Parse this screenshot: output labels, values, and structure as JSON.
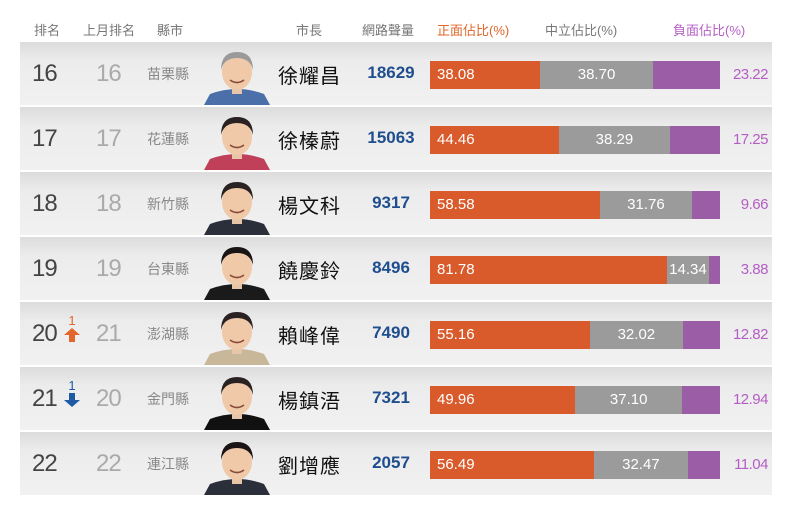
{
  "header": {
    "rank": "排名",
    "prev_rank": "上月排名",
    "county": "縣市",
    "mayor": "市長",
    "volume": "網路聲量",
    "positive": "正面佔比(%)",
    "neutral": "中立佔比(%)",
    "negative": "負面佔比(%)"
  },
  "colors": {
    "positive": "#d95b2b",
    "neutral": "#9b9b9b",
    "negative": "#9b5da6",
    "volume": "#1f4e8f",
    "up": "#e0662a",
    "down": "#1f5aa6"
  },
  "rows": [
    {
      "rank": "16",
      "change": "",
      "direction": "",
      "prev_rank": "16",
      "county": "苗栗縣",
      "mayor": "徐耀昌",
      "volume": "18629",
      "positive": "38.08",
      "neutral": "38.70",
      "negative": "23.22"
    },
    {
      "rank": "17",
      "change": "",
      "direction": "",
      "prev_rank": "17",
      "county": "花蓮縣",
      "mayor": "徐榛蔚",
      "volume": "15063",
      "positive": "44.46",
      "neutral": "38.29",
      "negative": "17.25"
    },
    {
      "rank": "18",
      "change": "",
      "direction": "",
      "prev_rank": "18",
      "county": "新竹縣",
      "mayor": "楊文科",
      "volume": "9317",
      "positive": "58.58",
      "neutral": "31.76",
      "negative": "9.66"
    },
    {
      "rank": "19",
      "change": "",
      "direction": "",
      "prev_rank": "19",
      "county": "台東縣",
      "mayor": "饒慶鈴",
      "volume": "8496",
      "positive": "81.78",
      "neutral": "14.34",
      "negative": "3.88"
    },
    {
      "rank": "20",
      "change": "1",
      "direction": "up",
      "prev_rank": "21",
      "county": "澎湖縣",
      "mayor": "賴峰偉",
      "volume": "7490",
      "positive": "55.16",
      "neutral": "32.02",
      "negative": "12.82"
    },
    {
      "rank": "21",
      "change": "1",
      "direction": "down",
      "prev_rank": "20",
      "county": "金門縣",
      "mayor": "楊鎮浯",
      "volume": "7321",
      "positive": "49.96",
      "neutral": "37.10",
      "negative": "12.94"
    },
    {
      "rank": "22",
      "change": "",
      "direction": "",
      "prev_rank": "22",
      "county": "連江縣",
      "mayor": "劉增應",
      "volume": "2057",
      "positive": "56.49",
      "neutral": "32.47",
      "negative": "11.04"
    }
  ],
  "chart_data": {
    "type": "bar",
    "orientation": "horizontal-stacked",
    "title": "",
    "categories": [
      "徐耀昌 (苗栗縣)",
      "徐榛蔚 (花蓮縣)",
      "楊文科 (新竹縣)",
      "饒慶鈴 (台東縣)",
      "賴峰偉 (澎湖縣)",
      "楊鎮浯 (金門縣)",
      "劉增應 (連江縣)"
    ],
    "series": [
      {
        "name": "正面佔比(%)",
        "color": "#d95b2b",
        "values": [
          38.08,
          44.46,
          58.58,
          81.78,
          55.16,
          49.96,
          56.49
        ]
      },
      {
        "name": "中立佔比(%)",
        "color": "#9b9b9b",
        "values": [
          38.7,
          38.29,
          31.76,
          14.34,
          32.02,
          37.1,
          32.47
        ]
      },
      {
        "name": "負面佔比(%)",
        "color": "#9b5da6",
        "values": [
          23.22,
          17.25,
          9.66,
          3.88,
          12.82,
          12.94,
          11.04
        ]
      }
    ],
    "extra_columns": {
      "排名": [
        16,
        17,
        18,
        19,
        20,
        21,
        22
      ],
      "上月排名": [
        16,
        17,
        18,
        19,
        21,
        20,
        22
      ],
      "網路聲量": [
        18629,
        15063,
        9317,
        8496,
        7490,
        7321,
        2057
      ]
    },
    "xlabel": "",
    "ylabel": "",
    "xlim": [
      0,
      100
    ],
    "grid": false,
    "legend_position": "top (column headers)"
  }
}
